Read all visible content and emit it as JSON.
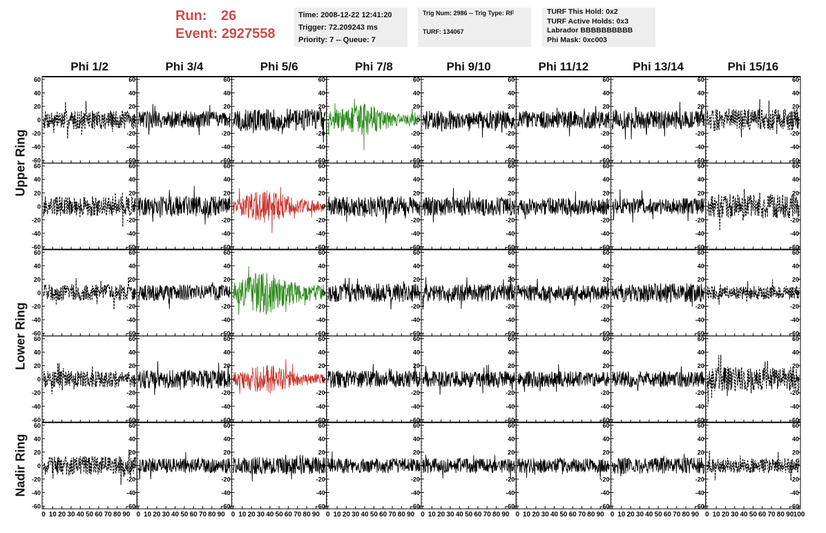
{
  "header": {
    "run_label": "Run:",
    "run_value": "26",
    "event_label": "Event:",
    "event_value": "2927558"
  },
  "info_box_1": {
    "time": "Time: 2008-12-22 12:41:20",
    "trigger": "Trigger: 72.209243 ms",
    "priority": "Priority: 7 -- Queue: 7"
  },
  "info_box_2": {
    "trig": "Trig Num: 2986 -- Trig Type: RF",
    "turf": "TURF: 134067"
  },
  "info_box_3": {
    "this_hold": "TURF This Hold: 0x2",
    "active_holds": "TURF Active Holds: 0x3",
    "labrador": "Labrador BBBBBBBBBB",
    "phi_mask": "Phi Mask: 0xc003"
  },
  "chart_data": {
    "type": "line",
    "columns": [
      "Phi 1/2",
      "Phi 3/4",
      "Phi 5/6",
      "Phi 7/8",
      "Phi 9/10",
      "Phi 11/12",
      "Phi 13/14",
      "Phi 15/16"
    ],
    "rows": [
      "Upper Ring",
      "Lower Ring",
      "Nadir Ring"
    ],
    "row_groups": [
      [
        "Upper Ring",
        2
      ],
      [
        "Lower Ring",
        2
      ],
      [
        "Nadir Ring",
        1
      ]
    ],
    "xlim": [
      0,
      100
    ],
    "ylim": [
      -60,
      60
    ],
    "y_ticks": [
      60,
      40,
      20,
      0,
      -20,
      -40,
      -60
    ],
    "x_tick_labels": [
      0,
      10,
      20,
      30,
      40,
      50,
      60,
      70,
      80,
      90,
      100
    ],
    "colors": {
      "black": "#000000",
      "green": "#2e8b1e",
      "red": "#c8342e"
    },
    "panels": [
      [
        "dash",
        "black",
        "black",
        "green",
        "black",
        "black",
        "black",
        "dash"
      ],
      [
        "dash",
        "black",
        "red",
        "black",
        "black",
        "black",
        "black",
        "dash"
      ],
      [
        "dash",
        "black",
        "green",
        "black",
        "black",
        "black",
        "black",
        "dash"
      ],
      [
        "dash",
        "black",
        "red",
        "black",
        "black",
        "black",
        "black",
        "dash"
      ],
      [
        "dash",
        "black",
        "black",
        "black",
        "black",
        "black",
        "black",
        "dash"
      ]
    ],
    "amplitudes": [
      [
        14,
        13,
        17,
        17,
        14,
        13,
        14,
        16
      ],
      [
        15,
        15,
        17,
        15,
        14,
        13,
        12,
        18
      ],
      [
        12,
        12,
        22,
        14,
        13,
        12,
        14,
        10
      ],
      [
        12,
        14,
        15,
        13,
        12,
        12,
        12,
        18
      ],
      [
        14,
        11,
        13,
        11,
        11,
        11,
        12,
        11
      ]
    ]
  }
}
